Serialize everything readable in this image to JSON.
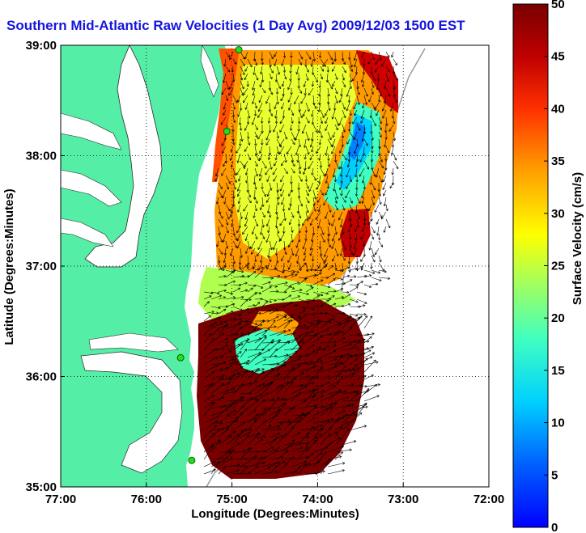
{
  "title": "Southern Mid-Atlantic Raw Velocities (1 Day Avg) 2009/12/03 1500 EST",
  "chart_data": {
    "type": "heatmap",
    "title": "Southern Mid-Atlantic Raw Velocities (1 Day Avg) 2009/12/03 1500 EST",
    "xlabel": "Longitude (Degrees:Minutes)",
    "ylabel": "Latitude (Degrees:Minutes)",
    "colorbar_label": "Surface Velocity (cm/s)",
    "x_ticks": [
      "77:00",
      "76:00",
      "75:00",
      "74:00",
      "73:00",
      "72:00"
    ],
    "y_ticks": [
      "39:00",
      "38:00",
      "37:00",
      "36:00",
      "35:00"
    ],
    "xlim": [
      -77,
      -72
    ],
    "ylim": [
      35,
      39
    ],
    "colorbar_ticks": [
      "50",
      "45",
      "40",
      "35",
      "30",
      "25",
      "20",
      "15",
      "10",
      "5",
      "0"
    ],
    "clim": [
      0,
      50
    ],
    "grid": true,
    "land_color": "#55eea6",
    "colormap": "jet",
    "stations": [
      {
        "lon": -74.92,
        "lat": 38.96
      },
      {
        "lon": -75.06,
        "lat": 38.22
      },
      {
        "lon": -75.6,
        "lat": 36.17
      },
      {
        "lon": -75.47,
        "lat": 35.24
      }
    ]
  }
}
